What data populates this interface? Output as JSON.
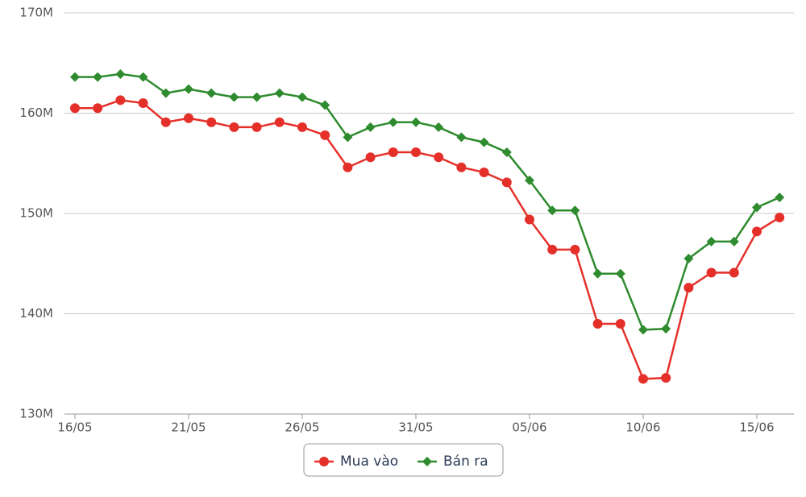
{
  "chart_data": {
    "type": "line",
    "categories": [
      "16/05",
      null,
      null,
      null,
      null,
      "21/05",
      null,
      null,
      null,
      null,
      "26/05",
      null,
      null,
      null,
      null,
      "31/05",
      null,
      null,
      null,
      null,
      "05/06",
      null,
      null,
      null,
      null,
      "10/06",
      null,
      null,
      null,
      null,
      "15/06",
      null
    ],
    "series": [
      {
        "name": "Mua vào",
        "color": "#e5302a",
        "marker": "circle",
        "values": [
          160500000,
          160500000,
          161300000,
          161000000,
          159100000,
          159500000,
          159100000,
          158600000,
          158600000,
          159100000,
          158600000,
          157800000,
          154600000,
          155600000,
          156100000,
          156100000,
          155600000,
          154600000,
          154100000,
          153100000,
          149400000,
          146400000,
          146400000,
          139000000,
          139000000,
          133500000,
          133600000,
          142600000,
          144100000,
          144100000,
          148200000,
          149600000
        ]
      },
      {
        "name": "Bán ra",
        "color": "#2e8b2e",
        "marker": "diamond",
        "values": [
          163600000,
          163600000,
          163900000,
          163600000,
          162000000,
          162400000,
          162000000,
          161600000,
          161600000,
          162000000,
          161600000,
          160800000,
          157600000,
          158600000,
          159100000,
          159100000,
          158600000,
          157600000,
          157100000,
          156100000,
          153300000,
          150300000,
          150300000,
          144000000,
          144000000,
          138400000,
          138500000,
          145500000,
          147200000,
          147200000,
          150600000,
          151600000
        ]
      }
    ],
    "ylim": [
      130000000,
      170000000
    ],
    "yticks": [
      {
        "value": 130000000,
        "label": "130M"
      },
      {
        "value": 140000000,
        "label": "140M"
      },
      {
        "value": 150000000,
        "label": "150M"
      },
      {
        "value": 160000000,
        "label": "160M"
      },
      {
        "value": 170000000,
        "label": "170M"
      }
    ],
    "grid": true,
    "legend": "bottom"
  }
}
